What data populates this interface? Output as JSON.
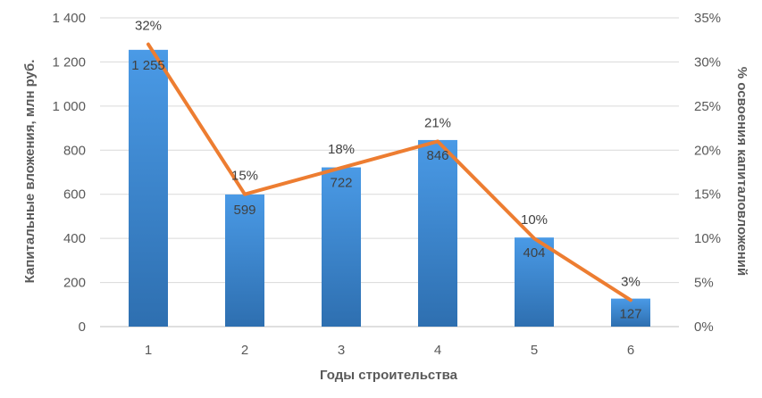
{
  "chart_data": {
    "type": "bar",
    "categories": [
      "1",
      "2",
      "3",
      "4",
      "5",
      "6"
    ],
    "series": [
      {
        "type": "bar",
        "axis": "left",
        "values": [
          1255,
          599,
          722,
          846,
          404,
          127
        ],
        "labels": [
          "1 255",
          "599",
          "722",
          "846",
          "404",
          "127"
        ],
        "color": "#3f8edb"
      },
      {
        "type": "line",
        "axis": "right",
        "values": [
          32,
          15,
          18,
          21,
          10,
          3
        ],
        "labels": [
          "32%",
          "15%",
          "18%",
          "21%",
          "10%",
          "3%"
        ],
        "color": "#ed7d31"
      }
    ],
    "xlabel": "Годы строительства",
    "ylabel": "Капитальные вложения, млн руб.",
    "y2label": "% освоения капиталовложений",
    "ylim": [
      0,
      1400
    ],
    "y2lim": [
      0,
      35
    ],
    "yticks": [
      "0",
      "200",
      "400",
      "600",
      "800",
      "1 000",
      "1 200",
      "1 400"
    ],
    "y2ticks": [
      "0%",
      "5%",
      "10%",
      "15%",
      "20%",
      "25%",
      "30%",
      "35%"
    ],
    "grid": true,
    "legend": "none"
  }
}
